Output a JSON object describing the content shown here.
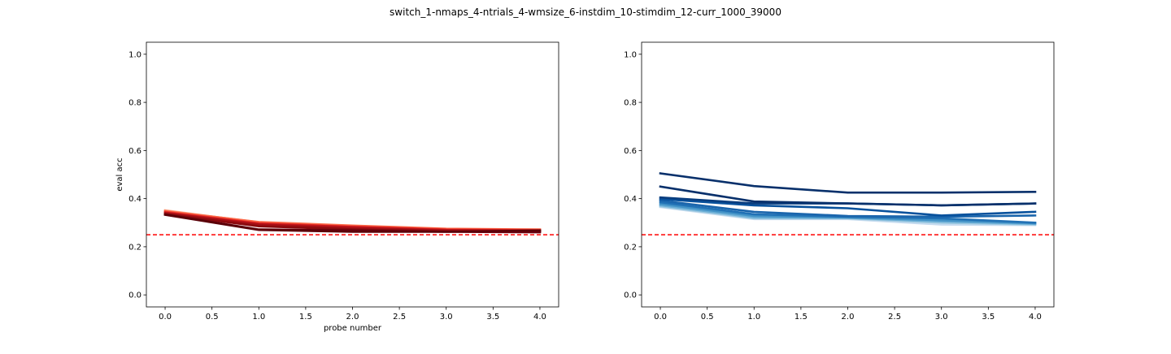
{
  "figure": {
    "title": "switch_1-nmaps_4-ntrials_4-wmsize_6-instdim_10-stimdim_12-curr_1000_39000"
  },
  "chart_data": [
    {
      "type": "line",
      "title": "",
      "xlabel": "probe number",
      "ylabel": "eval acc",
      "xlim": [
        -0.2,
        4.2
      ],
      "ylim": [
        -0.05,
        1.05
      ],
      "xticks": [
        "0.0",
        "0.5",
        "1.0",
        "1.5",
        "2.0",
        "2.5",
        "3.0",
        "3.5",
        "4.0"
      ],
      "yticks": [
        "0.0",
        "0.2",
        "0.4",
        "0.6",
        "0.8",
        "1.0"
      ],
      "x": [
        0,
        1,
        2,
        3,
        4
      ],
      "hline": {
        "y": 0.25,
        "color": "#ff0000",
        "style": "dashed"
      },
      "grid": false,
      "series": [
        {
          "color": "#fcbba1",
          "values": [
            0.352,
            0.3,
            0.285,
            0.272,
            0.27
          ]
        },
        {
          "color": "#fc9272",
          "values": [
            0.35,
            0.302,
            0.286,
            0.273,
            0.271
          ]
        },
        {
          "color": "#fb6a4a",
          "values": [
            0.348,
            0.303,
            0.288,
            0.275,
            0.272
          ]
        },
        {
          "color": "#ef3b2c",
          "values": [
            0.345,
            0.298,
            0.284,
            0.272,
            0.27
          ]
        },
        {
          "color": "#cb181d",
          "values": [
            0.342,
            0.296,
            0.282,
            0.27,
            0.268
          ]
        },
        {
          "color": "#b01217",
          "values": [
            0.34,
            0.292,
            0.278,
            0.268,
            0.266
          ]
        },
        {
          "color": "#a50f15",
          "values": [
            0.338,
            0.29,
            0.276,
            0.266,
            0.265
          ]
        },
        {
          "color": "#8b0a0e",
          "values": [
            0.336,
            0.285,
            0.272,
            0.264,
            0.262
          ]
        },
        {
          "color": "#67000d",
          "values": [
            0.334,
            0.272,
            0.268,
            0.262,
            0.26
          ]
        },
        {
          "color": "#5a0008",
          "values": [
            0.333,
            0.27,
            0.262,
            0.262,
            0.268
          ]
        }
      ]
    },
    {
      "type": "line",
      "title": "",
      "xlabel": "",
      "ylabel": "",
      "xlim": [
        -0.2,
        4.2
      ],
      "ylim": [
        -0.05,
        1.05
      ],
      "xticks": [
        "0.0",
        "0.5",
        "1.0",
        "1.5",
        "2.0",
        "2.5",
        "3.0",
        "3.5",
        "4.0"
      ],
      "yticks": [
        "0.0",
        "0.2",
        "0.4",
        "0.6",
        "0.8",
        "1.0"
      ],
      "x": [
        0,
        1,
        2,
        3,
        4
      ],
      "hline": {
        "y": 0.25,
        "color": "#ff0000",
        "style": "dashed"
      },
      "grid": false,
      "series": [
        {
          "color": "#c6dbef",
          "values": [
            0.365,
            0.315,
            0.315,
            0.292,
            0.29
          ]
        },
        {
          "color": "#9ecae1",
          "values": [
            0.368,
            0.318,
            0.318,
            0.3,
            0.292
          ]
        },
        {
          "color": "#6baed6",
          "values": [
            0.372,
            0.322,
            0.32,
            0.305,
            0.295
          ]
        },
        {
          "color": "#4292c6",
          "values": [
            0.378,
            0.328,
            0.322,
            0.31,
            0.298
          ]
        },
        {
          "color": "#2171b5",
          "values": [
            0.385,
            0.335,
            0.325,
            0.318,
            0.3
          ]
        },
        {
          "color": "#1a65ac",
          "values": [
            0.392,
            0.345,
            0.328,
            0.325,
            0.33
          ]
        },
        {
          "color": "#08519c",
          "values": [
            0.398,
            0.372,
            0.36,
            0.33,
            0.345
          ]
        },
        {
          "color": "#083d7f",
          "values": [
            0.405,
            0.38,
            0.38,
            0.372,
            0.38
          ]
        },
        {
          "color": "#08306b",
          "values": [
            0.45,
            0.388,
            0.38,
            0.372,
            0.38
          ]
        },
        {
          "color": "#08306b",
          "values": [
            0.505,
            0.452,
            0.425,
            0.425,
            0.428
          ]
        }
      ]
    }
  ]
}
